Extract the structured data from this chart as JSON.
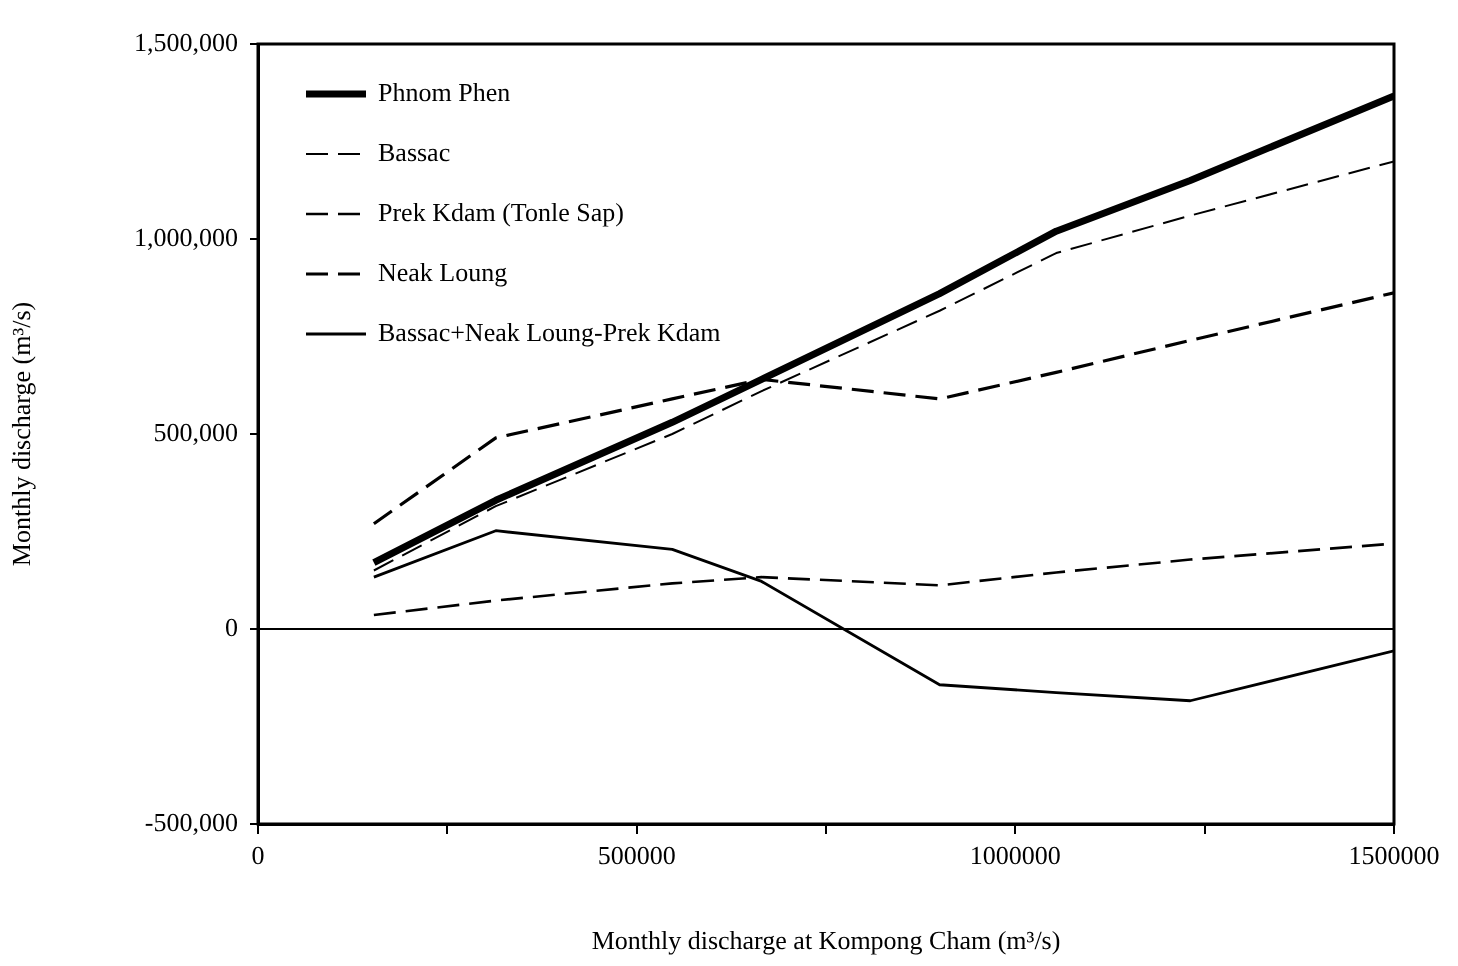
{
  "chart_data": {
    "type": "line",
    "xlabel": "Monthly discharge at Kompong Cham (m³/s)",
    "ylabel": "Monthly discharge (m³/s)",
    "x": [
      153000,
      314000,
      547000,
      665000,
      900000,
      1054000,
      1231000,
      1500000
    ],
    "series": [
      {
        "name": "Phnom Phen",
        "color": "#000000",
        "line_style": "solid",
        "values": [
          170000,
          330000,
          530000,
          640000,
          860000,
          1020000,
          1150000,
          1367000
        ]
      },
      {
        "name": "Bassac",
        "color": "#000000",
        "line_style": "dashed",
        "values": [
          150000,
          315000,
          500000,
          610000,
          816000,
          964000,
          1060000,
          1199000
        ]
      },
      {
        "name": "Prek Kdam (Tonle Sap)",
        "color": "#000000",
        "line_style": "dashed",
        "values": [
          36000,
          73000,
          117000,
          133000,
          112000,
          145000,
          178000,
          219000
        ]
      },
      {
        "name": "Neak Loung",
        "color": "#000000",
        "line_style": "dashed",
        "values": [
          270000,
          490000,
          590000,
          640000,
          590000,
          658000,
          740000,
          862000
        ]
      },
      {
        "name": "Bassac+Neak Loung-Prek Kdam",
        "color": "#000000",
        "line_style": "solid",
        "values": [
          133000,
          252000,
          204000,
          122000,
          -143000,
          -163000,
          -184000,
          -56000
        ]
      }
    ],
    "xlim": [
      0,
      1500000
    ],
    "xticks": [
      0,
      {
        "value": 250000,
        "label": null
      },
      500000,
      {
        "value": 750000,
        "label": null
      },
      1000000,
      {
        "value": 1250000,
        "label": null
      },
      1500000
    ],
    "ylim": [
      -500000,
      1500000
    ],
    "yticks": [
      {
        "value": -500000,
        "label": "-500,000"
      },
      {
        "value": 0,
        "label": "0"
      },
      {
        "value": 500000,
        "label": "500,000"
      },
      {
        "value": 1000000,
        "label": "1,000,000"
      },
      {
        "value": 1500000,
        "label": "1,500,000"
      }
    ],
    "ref_lines": [
      {
        "axis": "y",
        "value": 0,
        "color": "#000000"
      }
    ],
    "grid": false,
    "legend": "top left",
    "marker": "none"
  }
}
